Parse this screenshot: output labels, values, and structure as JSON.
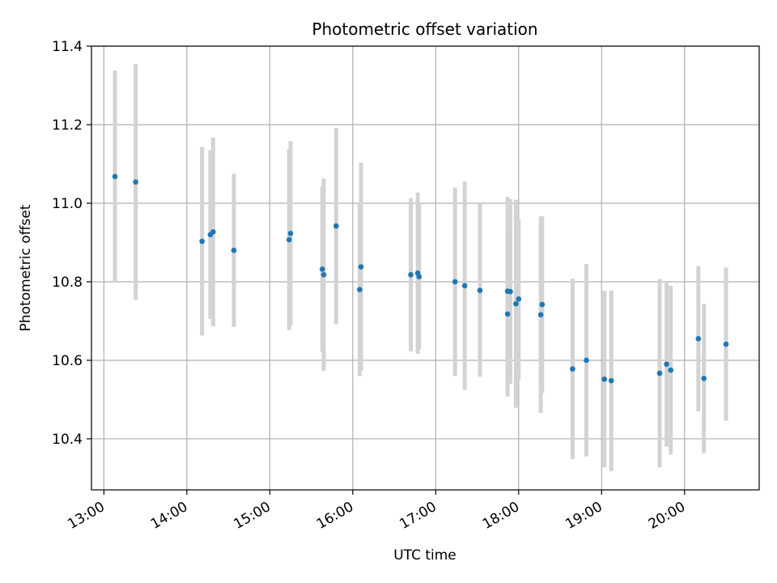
{
  "chart_data": {
    "type": "scatter",
    "title": "Photometric offset variation",
    "xlabel": "UTC time",
    "ylabel": "Photometric offset",
    "xlim": [
      "12:51",
      "20:54"
    ],
    "ylim": [
      10.27,
      11.4
    ],
    "grid": true,
    "x_ticks": [
      "13:00",
      "14:00",
      "15:00",
      "16:00",
      "17:00",
      "18:00",
      "19:00",
      "20:00"
    ],
    "y_ticks": [
      "10.4",
      "10.6",
      "10.8",
      "11.0",
      "11.2",
      "11.4"
    ],
    "colors": {
      "points": "#1f77b4",
      "errorbars": "#d3d3d3",
      "grid": "#b0b0b0"
    },
    "points": [
      {
        "x": "13:08",
        "y": 11.068,
        "err": 0.27
      },
      {
        "x": "13:23",
        "y": 11.054,
        "err": 0.3
      },
      {
        "x": "14:11",
        "y": 10.903,
        "err": 0.24
      },
      {
        "x": "14:17",
        "y": 10.92,
        "err": 0.215
      },
      {
        "x": "14:19",
        "y": 10.927,
        "err": 0.24
      },
      {
        "x": "14:34",
        "y": 10.88,
        "err": 0.195
      },
      {
        "x": "15:14",
        "y": 10.907,
        "err": 0.23
      },
      {
        "x": "15:15",
        "y": 10.923,
        "err": 0.235
      },
      {
        "x": "15:38",
        "y": 10.832,
        "err": 0.21
      },
      {
        "x": "15:39",
        "y": 10.818,
        "err": 0.245
      },
      {
        "x": "15:48",
        "y": 10.942,
        "err": 0.25
      },
      {
        "x": "16:05",
        "y": 10.78,
        "err": 0.22
      },
      {
        "x": "16:06",
        "y": 10.838,
        "err": 0.265
      },
      {
        "x": "16:42",
        "y": 10.818,
        "err": 0.195
      },
      {
        "x": "16:47",
        "y": 10.822,
        "err": 0.205
      },
      {
        "x": "16:48",
        "y": 10.813,
        "err": 0.185
      },
      {
        "x": "17:14",
        "y": 10.8,
        "err": 0.24
      },
      {
        "x": "17:21",
        "y": 10.79,
        "err": 0.265
      },
      {
        "x": "17:32",
        "y": 10.778,
        "err": 0.22
      },
      {
        "x": "17:52",
        "y": 10.718,
        "err": 0.21
      },
      {
        "x": "17:52",
        "y": 10.776,
        "err": 0.24
      },
      {
        "x": "17:54",
        "y": 10.775,
        "err": 0.235
      },
      {
        "x": "17:58",
        "y": 10.744,
        "err": 0.265
      },
      {
        "x": "18:00",
        "y": 10.756,
        "err": 0.205
      },
      {
        "x": "18:16",
        "y": 10.716,
        "err": 0.25
      },
      {
        "x": "18:17",
        "y": 10.742,
        "err": 0.225
      },
      {
        "x": "18:39",
        "y": 10.578,
        "err": 0.23
      },
      {
        "x": "18:49",
        "y": 10.6,
        "err": 0.245
      },
      {
        "x": "19:02",
        "y": 10.552,
        "err": 0.225
      },
      {
        "x": "19:07",
        "y": 10.548,
        "err": 0.23
      },
      {
        "x": "19:42",
        "y": 10.567,
        "err": 0.24
      },
      {
        "x": "19:47",
        "y": 10.59,
        "err": 0.21
      },
      {
        "x": "19:50",
        "y": 10.575,
        "err": 0.215
      },
      {
        "x": "20:10",
        "y": 10.655,
        "err": 0.185
      },
      {
        "x": "20:14",
        "y": 10.554,
        "err": 0.19
      },
      {
        "x": "20:30",
        "y": 10.641,
        "err": 0.195
      }
    ]
  }
}
